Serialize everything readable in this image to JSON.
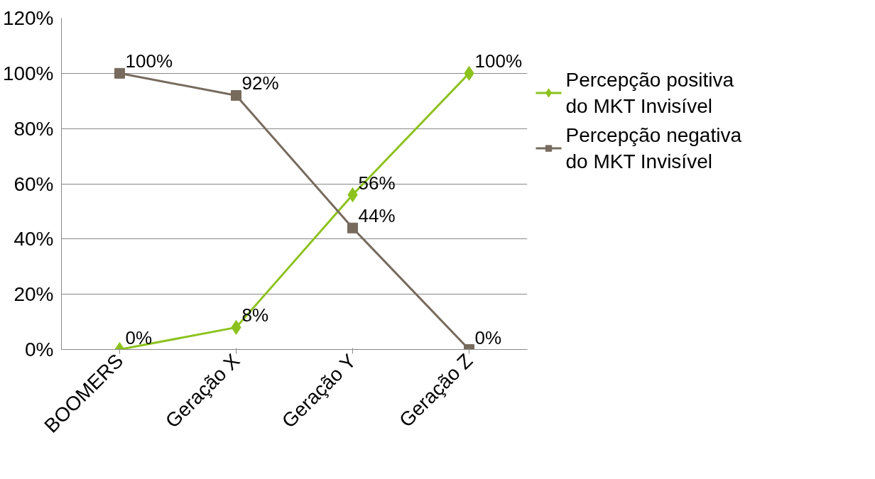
{
  "chart_data": {
    "type": "line",
    "categories": [
      "BOOMERS",
      "Geração X",
      "Geração Y",
      "Geração Z"
    ],
    "series": [
      {
        "name": "Percepção positiva do MKT Invisível",
        "color": "#8cc21e",
        "marker": "diamond",
        "values": [
          0,
          8,
          56,
          100
        ],
        "value_labels": [
          "0%",
          "8%",
          "56%",
          "100%"
        ]
      },
      {
        "name": "Percepção negativa do MKT Invisível",
        "color": "#776b5e",
        "marker": "square",
        "values": [
          100,
          92,
          44,
          0
        ],
        "value_labels": [
          "100%",
          "92%",
          "44%",
          "0%"
        ]
      }
    ],
    "ylim": [
      0,
      120
    ],
    "yticks": [
      {
        "value": 0,
        "label": "0%"
      },
      {
        "value": 20,
        "label": "20%"
      },
      {
        "value": 40,
        "label": "40%"
      },
      {
        "value": 60,
        "label": "60%"
      },
      {
        "value": 80,
        "label": "80%"
      },
      {
        "value": 100,
        "label": "100%"
      },
      {
        "value": 120,
        "label": "120%"
      }
    ],
    "grid": "y",
    "legend": "right",
    "line_style": "solid"
  }
}
